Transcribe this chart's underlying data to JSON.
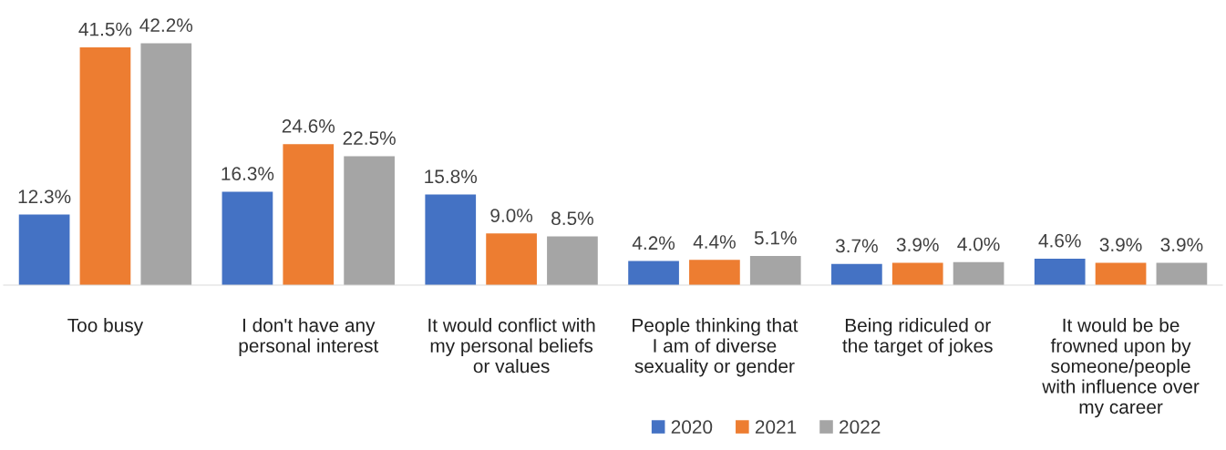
{
  "chart_data": {
    "type": "bar",
    "categories": [
      "Too busy",
      "I don't have any\npersonal interest",
      "It would conflict with\nmy personal beliefs\nor values",
      "People thinking that\nI am of diverse\nsexuality or gender",
      "Being ridiculed or\nthe target of jokes",
      "It would be be\nfrowned upon by\nsomeone/people\nwith influence over\nmy career"
    ],
    "series": [
      {
        "name": "2020",
        "color": "#4472c4",
        "values": [
          12.3,
          16.3,
          15.8,
          4.2,
          3.7,
          4.6
        ],
        "value_labels": [
          "12.3%",
          "16.3%",
          "15.8%",
          "4.2%",
          "3.7%",
          "4.6%"
        ]
      },
      {
        "name": "2021",
        "color": "#ed7d31",
        "values": [
          41.5,
          24.6,
          9.0,
          4.4,
          3.9,
          3.9
        ],
        "value_labels": [
          "41.5%",
          "24.6%",
          "9.0%",
          "4.4%",
          "3.9%",
          "3.9%"
        ]
      },
      {
        "name": "2022",
        "color": "#a5a5a5",
        "values": [
          42.2,
          22.5,
          8.5,
          5.1,
          4.0,
          3.9
        ],
        "value_labels": [
          "42.2%",
          "22.5%",
          "8.5%",
          "5.1%",
          "4.0%",
          "3.9%"
        ]
      }
    ],
    "legend": "bottom"
  }
}
